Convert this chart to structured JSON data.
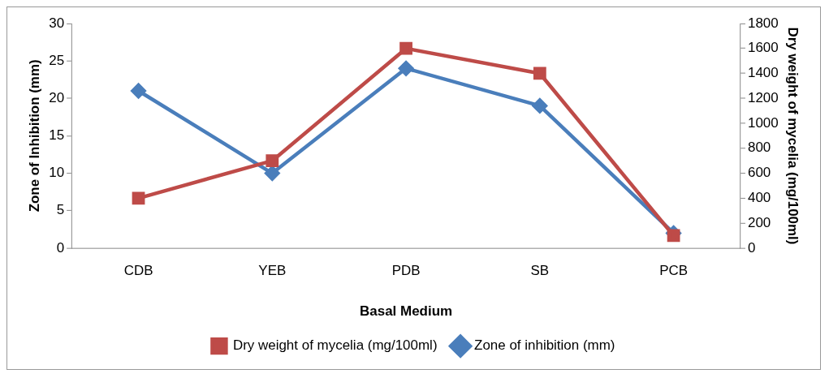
{
  "chart_data": {
    "type": "line",
    "xlabel": "Basal Medium",
    "ylabel": "Zone of Inhibition (mm)",
    "y2label": "Dry weight of mycelia (mg/100ml)",
    "categories": [
      "CDB",
      "YEB",
      "PDB",
      "SB",
      "PCB"
    ],
    "series": [
      {
        "name": "Zone of inhibition (mm)",
        "color": "#4a7ebb",
        "values": [
          21,
          10,
          24,
          19,
          2
        ],
        "marker": "diamond"
      },
      {
        "name": "Dry weight of mycelia (mg/100ml)",
        "color": "#be4b48",
        "values": [
          400,
          700,
          1600,
          1400,
          100
        ],
        "marker": "square",
        "axis": "y2"
      }
    ],
    "ylim": [
      0,
      30
    ],
    "yticks": [
      0,
      5,
      10,
      15,
      20,
      25,
      30
    ],
    "y2lim": [
      0,
      1800
    ],
    "y2ticks": [
      0,
      200,
      400,
      600,
      800,
      1000,
      1200,
      1400,
      1600,
      1800
    ],
    "grid": false,
    "legend": "bottom",
    "line_style": "solid"
  }
}
